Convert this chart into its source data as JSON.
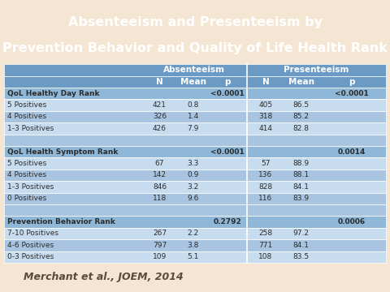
{
  "title_line1": "Absenteeism and Presenteeism by",
  "title_line2": "Prevention Behavior and Quality of Life Health Rank",
  "title_bg": "#8B1A1A",
  "title_color": "#FFFFFF",
  "table_bg": "#F5E6D3",
  "header_bg": "#6B9AC4",
  "header_color": "#FFFFFF",
  "row_bg_dark": "#A8C4E0",
  "row_bg_light": "#C8DCF0",
  "row_bg_section": "#8FB8D8",
  "rows": [
    {
      "label": "QoL Healthy Day Rank",
      "abs_n": "",
      "abs_mean": "",
      "abs_p": "<0.0001",
      "pres_n": "",
      "pres_mean": "",
      "pres_p": "<0.0001",
      "type": "section"
    },
    {
      "label": "5 Positives",
      "abs_n": "421",
      "abs_mean": "0.8",
      "abs_p": "",
      "pres_n": "405",
      "pres_mean": "86.5",
      "pres_p": "",
      "type": "odd"
    },
    {
      "label": "4 Positives",
      "abs_n": "326",
      "abs_mean": "1.4",
      "abs_p": "",
      "pres_n": "318",
      "pres_mean": "85.2",
      "pres_p": "",
      "type": "even"
    },
    {
      "label": "1-3 Positives",
      "abs_n": "426",
      "abs_mean": "7.9",
      "abs_p": "",
      "pres_n": "414",
      "pres_mean": "82.8",
      "pres_p": "",
      "type": "odd"
    },
    {
      "label": "",
      "abs_n": "",
      "abs_mean": "",
      "abs_p": "",
      "pres_n": "",
      "pres_mean": "",
      "pres_p": "",
      "type": "spacer"
    },
    {
      "label": "QoL Health Symptom Rank",
      "abs_n": "",
      "abs_mean": "",
      "abs_p": "<0.0001",
      "pres_n": "",
      "pres_mean": "",
      "pres_p": "0.0014",
      "type": "section"
    },
    {
      "label": "5 Positives",
      "abs_n": "67",
      "abs_mean": "3.3",
      "abs_p": "",
      "pres_n": "57",
      "pres_mean": "88.9",
      "pres_p": "",
      "type": "odd"
    },
    {
      "label": "4 Positives",
      "abs_n": "142",
      "abs_mean": "0.9",
      "abs_p": "",
      "pres_n": "136",
      "pres_mean": "88.1",
      "pres_p": "",
      "type": "even"
    },
    {
      "label": "1-3 Positives",
      "abs_n": "846",
      "abs_mean": "3.2",
      "abs_p": "",
      "pres_n": "828",
      "pres_mean": "84.1",
      "pres_p": "",
      "type": "odd"
    },
    {
      "label": "0 Positives",
      "abs_n": "118",
      "abs_mean": "9.6",
      "abs_p": "",
      "pres_n": "116",
      "pres_mean": "83.9",
      "pres_p": "",
      "type": "even"
    },
    {
      "label": "",
      "abs_n": "",
      "abs_mean": "",
      "abs_p": "",
      "pres_n": "",
      "pres_mean": "",
      "pres_p": "",
      "type": "spacer"
    },
    {
      "label": "Prevention Behavior Rank",
      "abs_n": "",
      "abs_mean": "",
      "abs_p": "0.2792",
      "pres_n": "",
      "pres_mean": "",
      "pres_p": "0.0006",
      "type": "section"
    },
    {
      "label": "7-10 Positives",
      "abs_n": "267",
      "abs_mean": "2.2",
      "abs_p": "",
      "pres_n": "258",
      "pres_mean": "97.2",
      "pres_p": "",
      "type": "odd"
    },
    {
      "label": "4-6 Positives",
      "abs_n": "797",
      "abs_mean": "3.8",
      "abs_p": "",
      "pres_n": "771",
      "pres_mean": "84.1",
      "pres_p": "",
      "type": "even"
    },
    {
      "label": "0-3 Positives",
      "abs_n": "109",
      "abs_mean": "5.1",
      "abs_p": "",
      "pres_n": "108",
      "pres_mean": "83.5",
      "pres_p": "",
      "type": "odd"
    }
  ],
  "footer_left": "Merchant et al., JOEM, 2014",
  "footer_color": "#5B4A3A"
}
